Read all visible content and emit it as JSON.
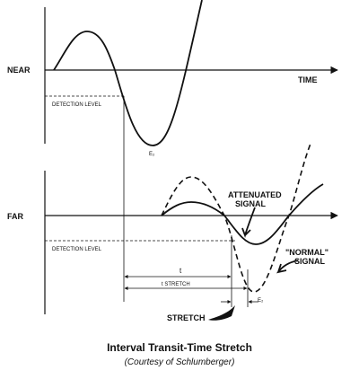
{
  "near": {
    "label": "NEAR",
    "axis_label": "TIME",
    "detection_level": "DETECTION LEVEL",
    "peak_label": "E₂"
  },
  "far": {
    "label": "FAR",
    "detection_level": "DETECTION LEVEL",
    "attenuated_signal": [
      "ATTENUATED",
      "SIGNAL"
    ],
    "normal_signal": [
      "\"NORMAL\"",
      "SIGNAL"
    ],
    "t_label": "t",
    "t_stretch_label": "t STRETCH",
    "peak_label": "E₂",
    "stretch_label": "STRETCH"
  },
  "caption": {
    "title": "Interval Transit-Time Stretch",
    "subtitle": "(Courtesy of Schlumberger)"
  }
}
